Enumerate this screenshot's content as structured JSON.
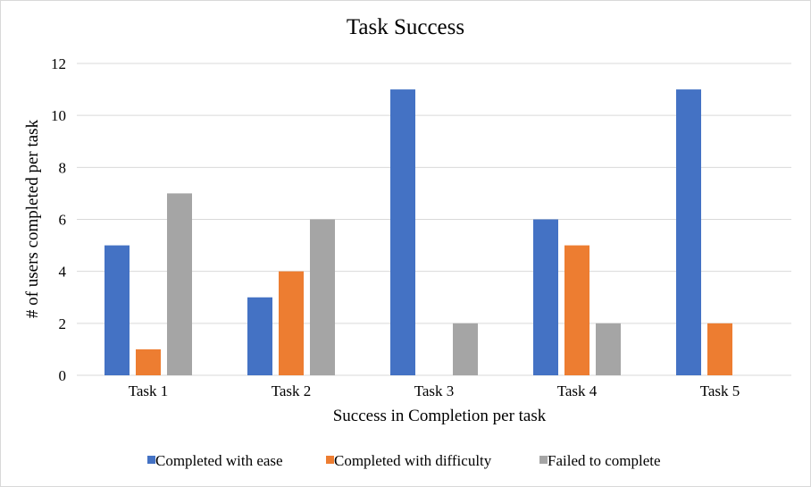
{
  "chart_data": {
    "type": "bar",
    "title": "Task Success",
    "xlabel": "Success in Completion per task",
    "ylabel": "# of users completed per task",
    "categories": [
      "Task 1",
      "Task 2",
      "Task 3",
      "Task 4",
      "Task 5"
    ],
    "series": [
      {
        "name": "Completed with ease",
        "color": "#4472C4",
        "values": [
          5,
          3,
          11,
          6,
          11
        ]
      },
      {
        "name": "Completed with difficulty",
        "color": "#ED7D31",
        "values": [
          1,
          4,
          0,
          5,
          2
        ]
      },
      {
        "name": "Failed to complete",
        "color": "#A5A5A5",
        "values": [
          7,
          6,
          2,
          2,
          0
        ]
      }
    ],
    "ylim": [
      0,
      12
    ],
    "yticks": [
      0,
      2,
      4,
      6,
      8,
      10,
      12
    ],
    "grid": true,
    "legend_position": "bottom"
  }
}
